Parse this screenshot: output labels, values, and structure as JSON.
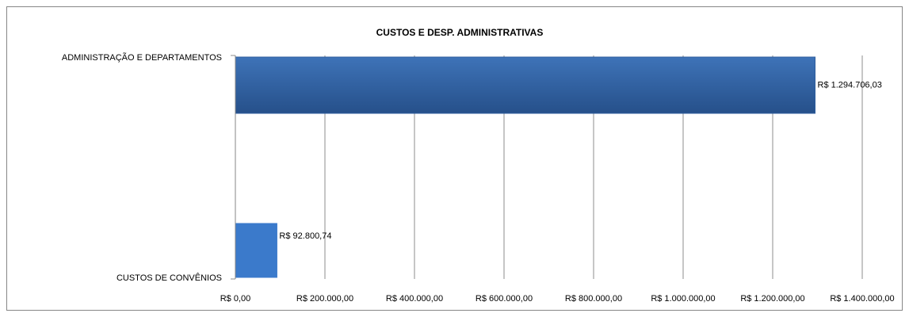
{
  "chart_data": {
    "type": "hbar",
    "title": "CUSTOS E DESP. ADMINISTRATIVAS",
    "categories": [
      "ADMINISTRAÇÃO E DEPARTAMENTOS",
      "CUSTOS DE CONVÊNIOS"
    ],
    "values": [
      1294706.03,
      92800.74
    ],
    "value_labels": [
      "R$ 1.294.706,03",
      "R$ 92.800,74"
    ],
    "colors": [
      "#2f5e9e",
      "#3b7acb"
    ],
    "xlim": [
      0,
      1400000
    ],
    "xticks": [
      {
        "value": 0,
        "label": "R$ 0,00"
      },
      {
        "value": 200000,
        "label": "R$ 200.000,00"
      },
      {
        "value": 400000,
        "label": "R$ 400.000,00"
      },
      {
        "value": 600000,
        "label": "R$ 600.000,00"
      },
      {
        "value": 800000,
        "label": "R$ 800.000,00"
      },
      {
        "value": 1000000,
        "label": "R$ 1.000.000,00"
      },
      {
        "value": 1200000,
        "label": "R$ 1.200.000,00"
      },
      {
        "value": 1400000,
        "label": "R$ 1.400.000,00"
      }
    ],
    "grid": true
  }
}
